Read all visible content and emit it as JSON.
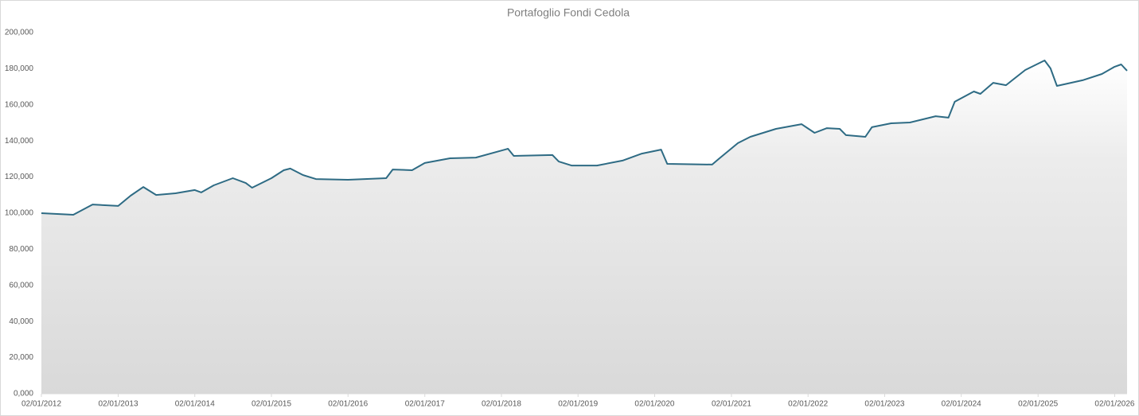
{
  "chart_data": {
    "type": "area",
    "title": "Portafoglio Fondi Cedola",
    "x": [
      "02/01/2012",
      "02/06/2012",
      "02/09/2012",
      "02/01/2013",
      "02/03/2013",
      "02/05/2013",
      "02/07/2013",
      "02/10/2013",
      "02/01/2014",
      "02/02/2014",
      "02/04/2014",
      "02/07/2014",
      "02/09/2014",
      "02/10/2014",
      "02/01/2015",
      "02/03/2015",
      "02/04/2015",
      "02/06/2015",
      "02/08/2015",
      "02/01/2016",
      "02/07/2016",
      "02/08/2016",
      "02/11/2016",
      "02/01/2017",
      "02/05/2017",
      "02/09/2017",
      "02/02/2018",
      "02/03/2018",
      "02/09/2018",
      "02/10/2018",
      "02/12/2018",
      "02/04/2019",
      "02/08/2019",
      "02/11/2019",
      "02/02/2020",
      "02/03/2020",
      "02/10/2020",
      "02/11/2020",
      "02/02/2021",
      "02/04/2021",
      "02/08/2021",
      "02/12/2021",
      "02/02/2022",
      "02/04/2022",
      "02/06/2022",
      "02/07/2022",
      "02/10/2022",
      "02/11/2022",
      "02/02/2023",
      "02/05/2023",
      "02/09/2023",
      "02/11/2023",
      "02/12/2023",
      "02/03/2024",
      "02/04/2024",
      "02/06/2024",
      "02/08/2024",
      "02/11/2024",
      "02/02/2025",
      "02/03/2025",
      "02/04/2025",
      "02/08/2025",
      "02/11/2025",
      "02/01/2026",
      "02/02/2026",
      "02/03/2026"
    ],
    "values": [
      100000,
      99100,
      104800,
      104000,
      109700,
      114500,
      110100,
      111000,
      112800,
      111500,
      115400,
      119400,
      116700,
      114100,
      119400,
      123800,
      124700,
      121100,
      118900,
      118500,
      119400,
      124200,
      123800,
      127800,
      130400,
      130800,
      135700,
      131700,
      132200,
      128600,
      126400,
      126400,
      129100,
      133000,
      135200,
      127300,
      126900,
      130000,
      138800,
      142300,
      146700,
      149300,
      144500,
      147100,
      146700,
      143200,
      142300,
      147600,
      149800,
      150200,
      153700,
      152900,
      161700,
      167400,
      166100,
      172200,
      170900,
      179300,
      184600,
      180200,
      170500,
      173600,
      177100,
      181100,
      182400,
      178900
    ],
    "color": "#2e6b84",
    "xlim": [
      "02/01/2012",
      "02/03/2026"
    ],
    "xticks": [
      "02/01/2012",
      "02/01/2013",
      "02/01/2014",
      "02/01/2015",
      "02/01/2016",
      "02/01/2017",
      "02/01/2018",
      "02/01/2019",
      "02/01/2020",
      "02/01/2021",
      "02/01/2022",
      "02/01/2023",
      "02/01/2024",
      "02/01/2025",
      "02/01/2026"
    ],
    "ylim": [
      0,
      200000
    ],
    "yticks": [
      {
        "value": 0,
        "label": "0,000"
      },
      {
        "value": 20000,
        "label": "20,000"
      },
      {
        "value": 40000,
        "label": "40,000"
      },
      {
        "value": 60000,
        "label": "60,000"
      },
      {
        "value": 80000,
        "label": "80,000"
      },
      {
        "value": 100000,
        "label": "100,000"
      },
      {
        "value": 120000,
        "label": "120,000"
      },
      {
        "value": 140000,
        "label": "140,000"
      },
      {
        "value": 160000,
        "label": "160,000"
      },
      {
        "value": 180000,
        "label": "180,000"
      },
      {
        "value": 200000,
        "label": "200,000"
      }
    ]
  }
}
